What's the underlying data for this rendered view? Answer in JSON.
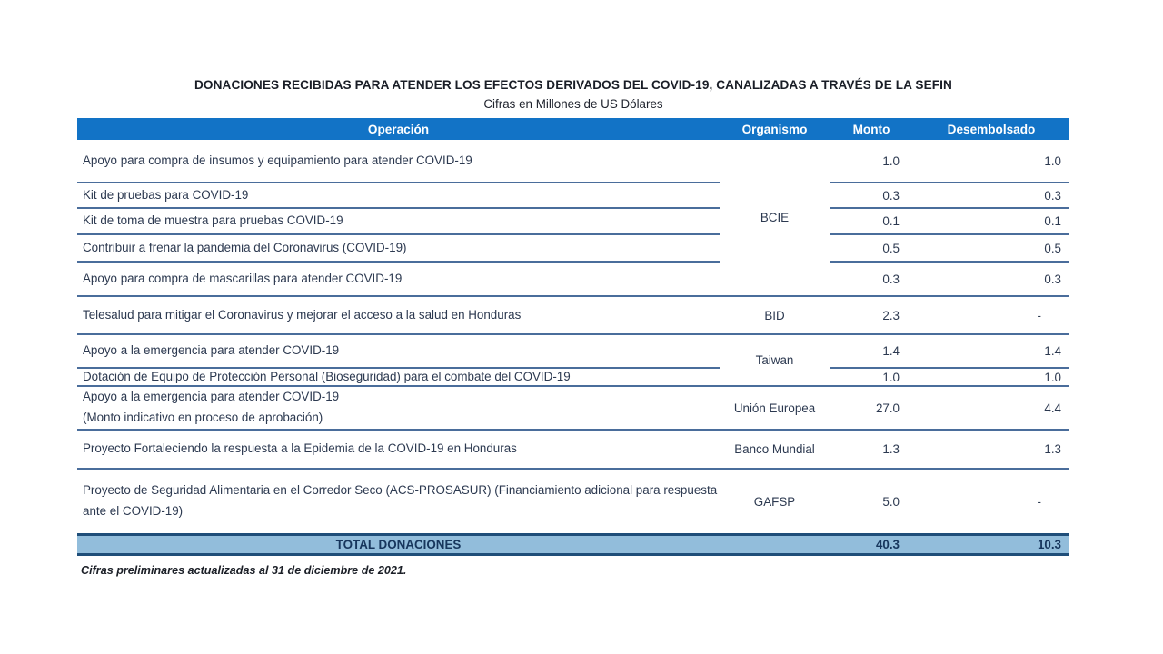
{
  "title": "DONACIONES RECIBIDAS PARA ATENDER LOS EFECTOS DERIVADOS DEL COVID-19, CANALIZADAS A TRAVÉS DE LA SEFIN",
  "subtitle": "Cifras en Millones de US Dólares",
  "columns": {
    "operacion": "Operación",
    "organismo": "Organismo",
    "monto": "Monto",
    "desembolsado": "Desembolsado"
  },
  "organismos": [
    "BCIE",
    "BID",
    "Taiwan",
    "Unión Europea",
    "Banco Mundial",
    "GAFSP"
  ],
  "rows": [
    {
      "operacion": "Apoyo para compra de insumos y equipamiento para atender COVID-19",
      "monto": "1.0",
      "desembolsado": "1.0"
    },
    {
      "operacion": "Kit de pruebas para COVID-19",
      "monto": "0.3",
      "desembolsado": "0.3"
    },
    {
      "operacion": "Kit de toma de muestra para pruebas COVID-19",
      "monto": "0.1",
      "desembolsado": "0.1"
    },
    {
      "operacion": "Contribuir a frenar la pandemia del Coronavirus (COVID-19)",
      "monto": "0.5",
      "desembolsado": "0.5"
    },
    {
      "operacion": "Apoyo para compra de mascarillas para atender COVID-19",
      "monto": "0.3",
      "desembolsado": "0.3"
    },
    {
      "operacion": "Telesalud para mitigar el Coronavirus y mejorar el acceso a la salud en Honduras",
      "monto": "2.3",
      "desembolsado": "-"
    },
    {
      "operacion": "Apoyo a la emergencia para atender COVID-19",
      "monto": "1.4",
      "desembolsado": "1.4"
    },
    {
      "operacion": "Dotación de Equipo de Protección Personal (Bioseguridad) para el combate del COVID-19",
      "monto": "1.0",
      "desembolsado": "1.0"
    },
    {
      "operacion": "Apoyo a la emergencia para atender COVID-19",
      "operacion2": "(Monto indicativo en proceso de aprobación)",
      "monto": "27.0",
      "desembolsado": "4.4"
    },
    {
      "operacion": "Proyecto Fortaleciendo la respuesta a la Epidemia de la COVID-19 en Honduras",
      "monto": "1.3",
      "desembolsado": "1.3"
    },
    {
      "operacion": "Proyecto de Seguridad Alimentaria en el Corredor Seco (ACS-PROSASUR) (Financiamiento adicional para respuesta ante el COVID-19)",
      "monto": "5.0",
      "desembolsado": "-"
    }
  ],
  "total": {
    "label": "TOTAL DONACIONES",
    "monto": "40.3",
    "desembolsado": "10.3"
  },
  "footnote": "Cifras preliminares actualizadas al 31 de diciembre de 2021.",
  "colors": {
    "header_bg": "#1273c6",
    "total_bg": "#92bddb",
    "row_line": "#4a6d9b",
    "total_border": "#1f4e79"
  }
}
